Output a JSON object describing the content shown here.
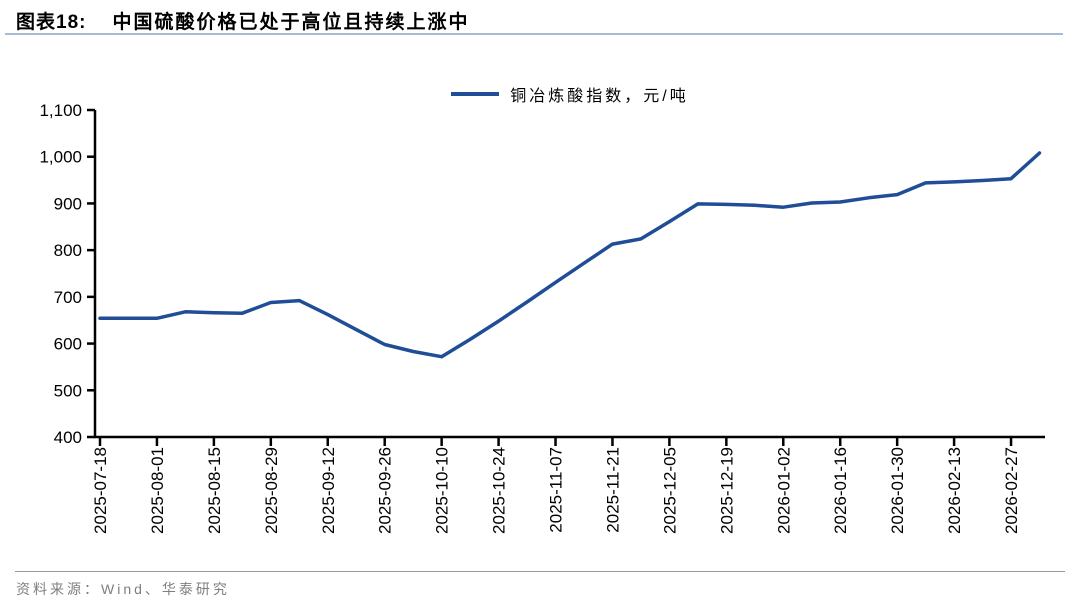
{
  "figure": {
    "label": "图表18:",
    "title": "中国硫酸价格已处于高位且持续上涨中"
  },
  "legend": {
    "label": "铜冶炼酸指数，元/吨"
  },
  "source": {
    "text": "资料来源：Wind、华泰研究"
  },
  "colors": {
    "line": "#1F4E96",
    "axis": "#000000",
    "tick_label": "#000000",
    "title_underline": "#A9BAD6",
    "source_text": "#7F7F7F",
    "source_rule": "#999999"
  },
  "chart_data": {
    "type": "line",
    "title": "中国硫酸价格已处于高位且持续上涨中",
    "series_name": "铜冶炼酸指数，元/吨",
    "unit": "元/吨",
    "x": [
      "2025-07-18",
      "2025-07-25",
      "2025-08-01",
      "2025-08-08",
      "2025-08-15",
      "2025-08-22",
      "2025-08-29",
      "2025-09-05",
      "2025-09-12",
      "2025-09-19",
      "2025-09-26",
      "2025-10-03",
      "2025-10-10",
      "2025-10-17",
      "2025-10-24",
      "2025-10-31",
      "2025-11-07",
      "2025-11-14",
      "2025-11-21",
      "2025-11-28",
      "2025-12-05",
      "2025-12-12",
      "2025-12-19",
      "2025-12-26",
      "2026-01-02",
      "2026-01-09",
      "2026-01-16",
      "2026-01-23",
      "2026-01-30",
      "2026-02-06",
      "2026-02-13",
      "2026-02-20",
      "2026-02-27",
      "2026-03-06"
    ],
    "values": [
      654,
      654,
      654,
      668,
      666,
      665,
      688,
      692,
      662,
      630,
      598,
      583,
      572,
      609,
      648,
      689,
      731,
      772,
      813,
      824,
      861,
      899,
      898,
      896,
      892,
      901,
      903,
      912,
      919,
      944,
      946,
      949,
      953,
      1008
    ],
    "x_tick_labels": [
      "2025-07-18",
      "2025-08-01",
      "2025-08-15",
      "2025-08-29",
      "2025-09-12",
      "2025-09-26",
      "2025-10-10",
      "2025-10-24",
      "2025-11-07",
      "2025-11-21",
      "2025-12-05",
      "2025-12-19",
      "2026-01-02",
      "2026-01-16",
      "2026-01-30",
      "2026-02-13",
      "2026-02-27"
    ],
    "x_tick_every": 2,
    "y_ticks": [
      400,
      500,
      600,
      700,
      800,
      900,
      1000,
      1100
    ],
    "ylim": [
      400,
      1100
    ],
    "grid": false,
    "legend_position": "top-center"
  }
}
